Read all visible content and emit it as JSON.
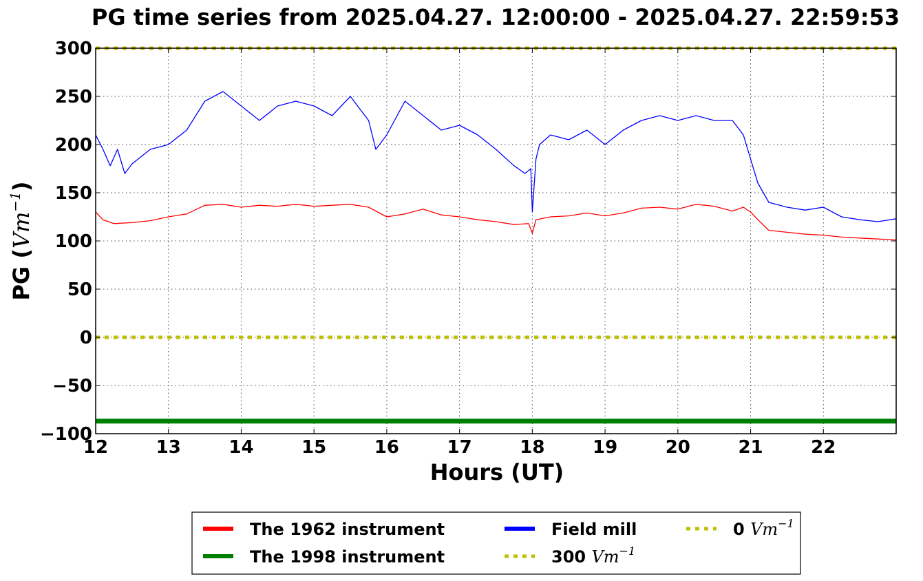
{
  "chart_data": {
    "type": "line",
    "title": "PG time series from 2025.04.27. 12:00:00 - 2025.04.27. 22:59:53",
    "xlabel": "Hours (UT)",
    "ylabel_prefix": "PG (",
    "ylabel_unit": "Vm",
    "ylabel_exp": "−1",
    "ylabel_suffix": ")",
    "xlim": [
      12,
      23
    ],
    "ylim": [
      -100,
      300
    ],
    "xticks": [
      12,
      13,
      14,
      15,
      16,
      17,
      18,
      19,
      20,
      21,
      22
    ],
    "yticks": [
      300,
      250,
      200,
      150,
      100,
      50,
      0,
      -50,
      -100
    ],
    "xtick_labels": [
      "12",
      "13",
      "14",
      "15",
      "16",
      "17",
      "18",
      "19",
      "20",
      "21",
      "22"
    ],
    "ytick_labels": [
      "300",
      "250",
      "200",
      "150",
      "100",
      "50",
      "0",
      "−50",
      "−100"
    ],
    "grid": true,
    "legend_position": "bottom-center",
    "series": [
      {
        "name": "The 1962 instrument",
        "color": "#ff0000",
        "style": "solid",
        "x": [
          12.0,
          12.1,
          12.25,
          12.5,
          12.75,
          13.0,
          13.25,
          13.5,
          13.75,
          14.0,
          14.25,
          14.5,
          14.75,
          15.0,
          15.25,
          15.5,
          15.75,
          16.0,
          16.25,
          16.5,
          16.75,
          17.0,
          17.25,
          17.5,
          17.75,
          17.95,
          18.0,
          18.05,
          18.25,
          18.5,
          18.75,
          19.0,
          19.25,
          19.5,
          19.75,
          20.0,
          20.25,
          20.5,
          20.75,
          20.9,
          21.0,
          21.1,
          21.25,
          21.5,
          21.75,
          22.0,
          22.25,
          22.5,
          22.75,
          23.0
        ],
        "y": [
          130,
          122,
          118,
          119,
          121,
          125,
          128,
          137,
          138,
          135,
          137,
          136,
          138,
          136,
          137,
          138,
          135,
          125,
          128,
          133,
          127,
          125,
          122,
          120,
          117,
          118,
          108,
          122,
          125,
          126,
          129,
          126,
          129,
          134,
          135,
          133,
          138,
          136,
          131,
          135,
          130,
          122,
          111,
          109,
          107,
          106,
          104,
          103,
          102,
          101
        ]
      },
      {
        "name": "The 1998 instrument",
        "color": "#008000",
        "style": "solid",
        "x": [
          12.0,
          23.0
        ],
        "y": [
          -87,
          -87
        ]
      },
      {
        "name": "Field mill",
        "color": "#0000ff",
        "style": "solid",
        "x": [
          12.0,
          12.1,
          12.2,
          12.3,
          12.4,
          12.5,
          12.75,
          13.0,
          13.25,
          13.5,
          13.75,
          14.0,
          14.25,
          14.5,
          14.75,
          15.0,
          15.25,
          15.5,
          15.75,
          15.85,
          16.0,
          16.25,
          16.5,
          16.75,
          17.0,
          17.25,
          17.5,
          17.75,
          17.9,
          17.98,
          18.0,
          18.05,
          18.1,
          18.25,
          18.5,
          18.75,
          19.0,
          19.25,
          19.5,
          19.75,
          20.0,
          20.25,
          20.5,
          20.75,
          20.9,
          21.0,
          21.1,
          21.25,
          21.5,
          21.75,
          22.0,
          22.25,
          22.5,
          22.75,
          23.0
        ],
        "y": [
          210,
          195,
          178,
          195,
          170,
          180,
          195,
          200,
          215,
          245,
          255,
          240,
          225,
          240,
          245,
          240,
          230,
          250,
          225,
          195,
          210,
          245,
          230,
          215,
          220,
          210,
          195,
          178,
          170,
          175,
          130,
          185,
          200,
          210,
          205,
          215,
          200,
          215,
          225,
          230,
          225,
          230,
          225,
          225,
          210,
          185,
          160,
          140,
          135,
          132,
          135,
          125,
          122,
          120,
          123
        ]
      },
      {
        "name": "300",
        "color": "#bfbf00",
        "style": "dotted",
        "x": [
          12.0,
          23.0
        ],
        "y": [
          300,
          300
        ]
      },
      {
        "name": "0",
        "color": "#bfbf00",
        "style": "dotted",
        "x": [
          12.0,
          23.0
        ],
        "y": [
          0,
          0
        ]
      }
    ]
  },
  "legend": {
    "items": [
      {
        "label": "The 1962 instrument",
        "unit": "",
        "exp": "",
        "color": "#ff0000",
        "style": "solid"
      },
      {
        "label": "The 1998 instrument",
        "unit": "",
        "exp": "",
        "color": "#008000",
        "style": "solid"
      },
      {
        "label": "Field mill",
        "unit": "",
        "exp": "",
        "color": "#0000ff",
        "style": "solid"
      },
      {
        "label": "300 ",
        "unit": "Vm",
        "exp": "−1",
        "color": "#bfbf00",
        "style": "dotted"
      },
      {
        "label": "0 ",
        "unit": "Vm",
        "exp": "−1",
        "color": "#bfbf00",
        "style": "dotted"
      }
    ]
  }
}
